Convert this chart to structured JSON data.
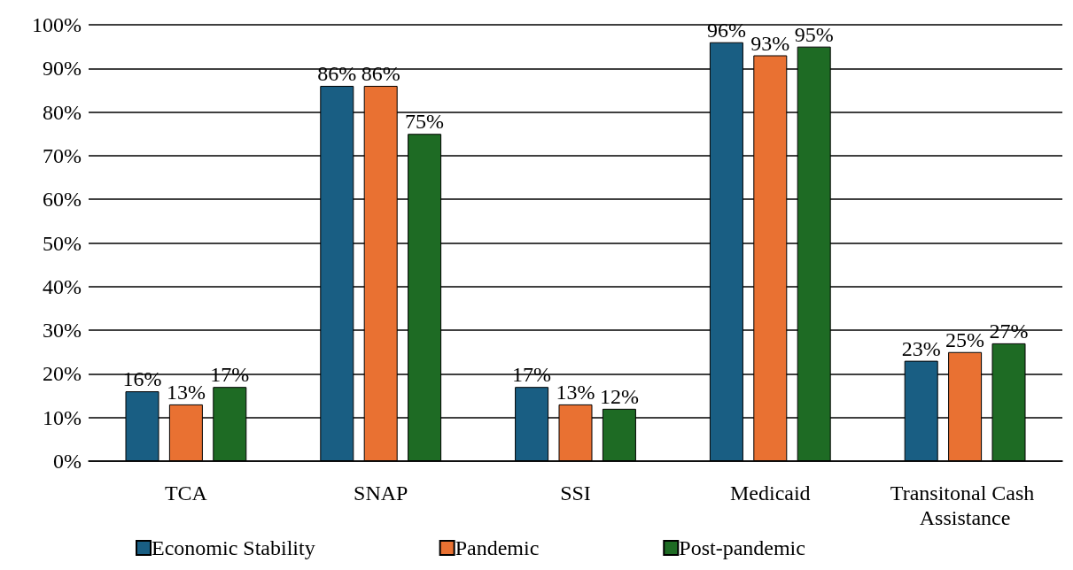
{
  "chart_data": {
    "type": "bar",
    "categories": [
      "TCA",
      "SNAP",
      "SSI",
      "Medicaid",
      "Transitonal Cash Assistance"
    ],
    "series": [
      {
        "name": "Economic Stability",
        "color": "#195e83",
        "values": [
          16,
          86,
          17,
          96,
          23
        ],
        "value_labels": [
          "16%",
          "86%",
          "17%",
          "96%",
          "23%"
        ]
      },
      {
        "name": "Pandemic",
        "color": "#e97132",
        "values": [
          13,
          86,
          13,
          93,
          25
        ],
        "value_labels": [
          "13%",
          "86%",
          "13%",
          "93%",
          "25%"
        ]
      },
      {
        "name": "Post-pandemic",
        "color": "#1e6b24",
        "values": [
          17,
          75,
          12,
          95,
          27
        ],
        "value_labels": [
          "17%",
          "75%",
          "12%",
          "95%",
          "27%"
        ]
      }
    ],
    "ylim": [
      0,
      100
    ],
    "yticks": [
      {
        "value": 0,
        "label": "0%"
      },
      {
        "value": 10,
        "label": "10%"
      },
      {
        "value": 20,
        "label": "20%"
      },
      {
        "value": 30,
        "label": "30%"
      },
      {
        "value": 40,
        "label": "40%"
      },
      {
        "value": 50,
        "label": "50%"
      },
      {
        "value": 60,
        "label": "60%"
      },
      {
        "value": 70,
        "label": "70%"
      },
      {
        "value": 80,
        "label": "80%"
      },
      {
        "value": 90,
        "label": "90%"
      },
      {
        "value": 100,
        "label": "100%"
      }
    ],
    "grid": "y",
    "legend": "bottom"
  }
}
